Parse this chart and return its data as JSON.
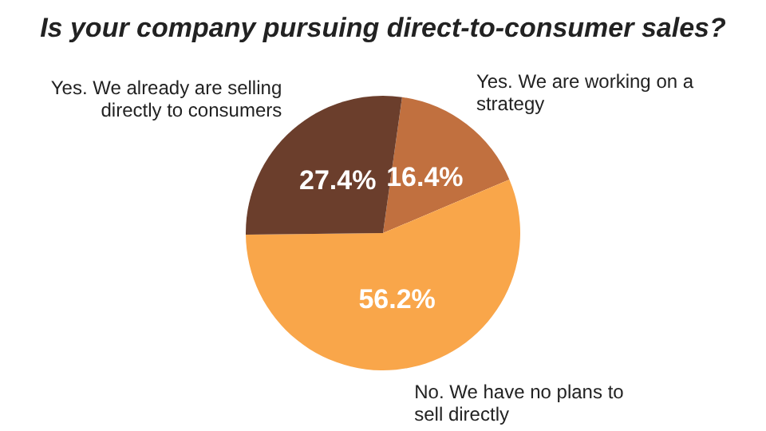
{
  "chart_data": {
    "type": "pie",
    "title": "Is your company pursuing direct-to-consumer sales?",
    "categories": [
      "Yes. We are working on a strategy",
      "No. We have no plans to sell directly",
      "Yes. We already are selling directly to consumers"
    ],
    "values": [
      16.4,
      56.2,
      27.4
    ],
    "colors": [
      "#c1703f",
      "#f9a64a",
      "#6b3e2c"
    ],
    "value_labels": [
      "16.4%",
      "56.2%",
      "27.4%"
    ],
    "legend": false
  }
}
